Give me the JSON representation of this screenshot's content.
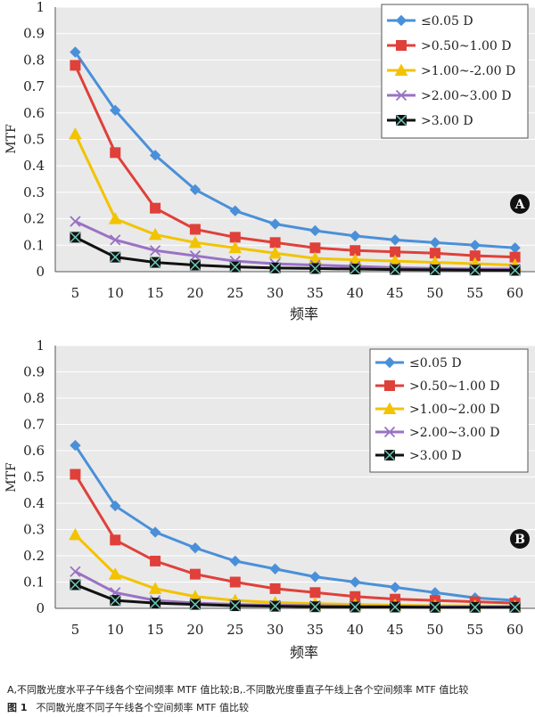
{
  "chart_data": [
    {
      "type": "line",
      "panel_label": "A",
      "xlabel": "频率",
      "ylabel": "MTF",
      "ylim": [
        0,
        1
      ],
      "yticks": [
        "0",
        "0.1",
        "0.2",
        "0.3",
        "0.4",
        "0.5",
        "0.6",
        "0.7",
        "0.8",
        "0.9",
        "1"
      ],
      "categories": [
        "5",
        "10",
        "15",
        "20",
        "25",
        "30",
        "35",
        "40",
        "45",
        "50",
        "55",
        "60"
      ],
      "legend_position": "top-right",
      "grid": true,
      "series": [
        {
          "name": "≤0.05  D",
          "color": "#4a90d9",
          "marker": "diamond",
          "values": [
            0.83,
            0.61,
            0.44,
            0.31,
            0.23,
            0.18,
            0.155,
            0.135,
            0.12,
            0.11,
            0.1,
            0.09
          ]
        },
        {
          "name": ">0.50~1.00  D",
          "color": "#e0403a",
          "marker": "square",
          "values": [
            0.78,
            0.45,
            0.24,
            0.16,
            0.13,
            0.11,
            0.09,
            0.08,
            0.075,
            0.07,
            0.06,
            0.055
          ]
        },
        {
          "name": ">1.00~-2.00  D",
          "color": "#f2c300",
          "marker": "triangle",
          "values": [
            0.52,
            0.2,
            0.14,
            0.11,
            0.09,
            0.07,
            0.05,
            0.045,
            0.04,
            0.035,
            0.03,
            0.025
          ]
        },
        {
          "name": ">2.00~3.00  D",
          "color": "#9a72c4",
          "marker": "x",
          "values": [
            0.19,
            0.12,
            0.08,
            0.06,
            0.04,
            0.03,
            0.025,
            0.02,
            0.015,
            0.012,
            0.01,
            0.01
          ]
        },
        {
          "name": ">3.00  D",
          "color": "#111111",
          "marker": "star",
          "values": [
            0.13,
            0.055,
            0.035,
            0.025,
            0.018,
            0.014,
            0.012,
            0.01,
            0.008,
            0.007,
            0.006,
            0.005
          ]
        }
      ]
    },
    {
      "type": "line",
      "panel_label": "B",
      "xlabel": "频率",
      "ylabel": "MTF",
      "ylim": [
        0,
        1
      ],
      "yticks": [
        "0",
        "0.1",
        "0.2",
        "0.3",
        "0.4",
        "0.5",
        "0.6",
        "0.7",
        "0.8",
        "0.9",
        "1"
      ],
      "categories": [
        "5",
        "10",
        "15",
        "20",
        "25",
        "30",
        "35",
        "40",
        "45",
        "50",
        "55",
        "60"
      ],
      "legend_position": "top-right",
      "grid": true,
      "series": [
        {
          "name": "≤0.05  D",
          "color": "#4a90d9",
          "marker": "diamond",
          "values": [
            0.62,
            0.39,
            0.29,
            0.23,
            0.18,
            0.15,
            0.12,
            0.1,
            0.08,
            0.06,
            0.04,
            0.03
          ]
        },
        {
          "name": ">0.50~1.00  D",
          "color": "#e0403a",
          "marker": "square",
          "values": [
            0.51,
            0.26,
            0.18,
            0.13,
            0.1,
            0.075,
            0.06,
            0.045,
            0.035,
            0.03,
            0.025,
            0.02
          ]
        },
        {
          "name": ">1.00~2.00  D",
          "color": "#f2c300",
          "marker": "triangle",
          "values": [
            0.28,
            0.13,
            0.075,
            0.045,
            0.03,
            0.022,
            0.018,
            0.015,
            0.012,
            0.01,
            0.009,
            0.008
          ]
        },
        {
          "name": ">2.00~3.00  D",
          "color": "#9a72c4",
          "marker": "x",
          "values": [
            0.14,
            0.06,
            0.03,
            0.02,
            0.015,
            0.012,
            0.01,
            0.008,
            0.007,
            0.006,
            0.005,
            0.005
          ]
        },
        {
          "name": ">3.00  D",
          "color": "#111111",
          "marker": "star",
          "values": [
            0.09,
            0.03,
            0.02,
            0.015,
            0.01,
            0.008,
            0.006,
            0.005,
            0.005,
            0.004,
            0.004,
            0.004
          ]
        }
      ]
    }
  ],
  "caption": {
    "line_a": "A,不同散光度水平子午线各个空间频率 MTF 值比较;B,.不同散光度垂直子午线上各个空间频率 MTF 值比较",
    "figure_label": "图 1",
    "line_b": "不同散光度不同子午线各个空间频率 MTF 值比较"
  }
}
